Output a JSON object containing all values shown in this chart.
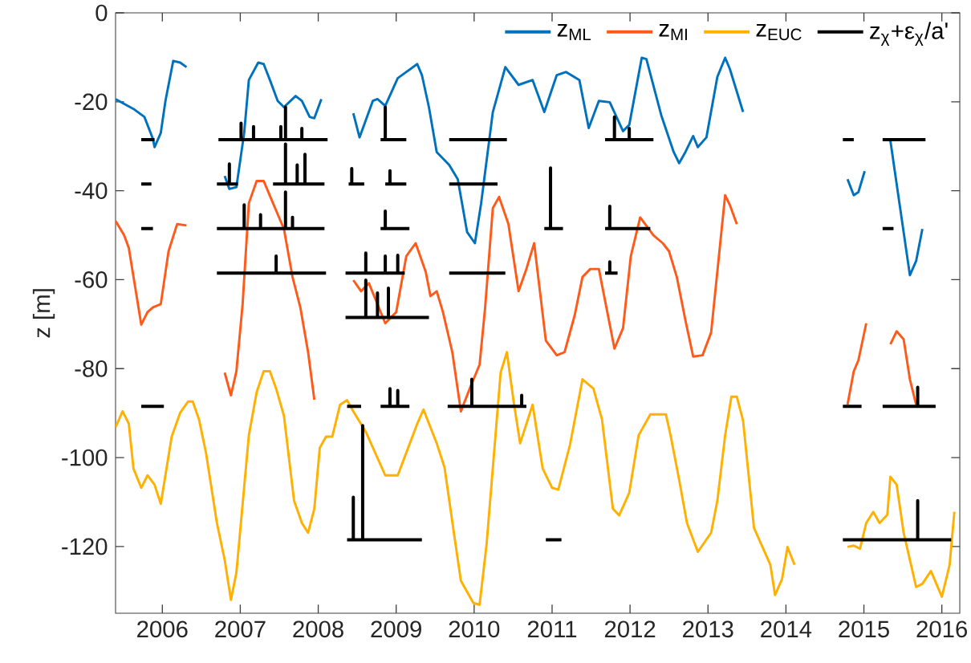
{
  "chart_data": {
    "type": "line",
    "ylabel": "z [m]",
    "xlim": [
      2005.4,
      2016.23
    ],
    "xticks": [
      2006,
      2007,
      2008,
      2009,
      2010,
      2011,
      2012,
      2013,
      2014,
      2015,
      2016
    ],
    "ylim": [
      -135,
      0
    ],
    "yticks": [
      -120,
      -100,
      -80,
      -60,
      -40,
      -20,
      0
    ],
    "legend": "top right",
    "series": [
      {
        "name": "z$_{ML}$",
        "color": "#0072bd",
        "x": [
          2005.4,
          2005.63,
          2005.77,
          2005.88,
          2005.9,
          2005.98,
          2006.04,
          2006.14,
          2006.23,
          2006.31,
          null,
          2006.8,
          2006.86,
          2006.95,
          2007.05,
          2007.11,
          2007.23,
          2007.3,
          2007.38,
          2007.48,
          2007.56,
          2007.71,
          2007.79,
          2007.89,
          2007.95,
          2008.04,
          null,
          2008.45,
          2008.53,
          2008.7,
          2008.76,
          2008.86,
          2009.02,
          2009.13,
          2009.27,
          2009.33,
          2009.42,
          2009.52,
          2009.68,
          2009.79,
          2009.91,
          2010.01,
          2010.09,
          2010.24,
          2010.4,
          2010.57,
          2010.75,
          2010.9,
          2011.06,
          2011.18,
          2011.35,
          2011.47,
          2011.6,
          2011.74,
          2011.91,
          2011.99,
          2012.15,
          2012.21,
          2012.4,
          2012.56,
          2012.63,
          2012.71,
          2012.81,
          2012.87,
          2012.98,
          2013.12,
          2013.22,
          2013.28,
          2013.45,
          null,
          2014.79,
          2014.87,
          2014.93,
          2015.01,
          null,
          2015.34,
          2015.59,
          2015.67,
          2015.75
        ],
        "values": [
          -19.4,
          -21.6,
          -23.4,
          -28.4,
          -30.2,
          -27,
          -19.8,
          -10.8,
          -11.2,
          -12.2,
          null,
          -36.7,
          -39.6,
          -39.2,
          -27,
          -15.1,
          -11.2,
          -11.5,
          -15.1,
          -19.8,
          -21.2,
          -18.7,
          -19.8,
          -23.4,
          -23.7,
          -19.4,
          null,
          -22.6,
          -28,
          -19.8,
          -19.4,
          -20.9,
          -14.7,
          -13.3,
          -11.5,
          -14,
          -21.2,
          -31.3,
          -34.2,
          -37.4,
          -49.3,
          -51.8,
          -42.8,
          -22.3,
          -12.2,
          -16.2,
          -15.1,
          -22.3,
          -14,
          -13.3,
          -15.1,
          -25.9,
          -19.8,
          -20.1,
          -26.6,
          -25.2,
          -10.1,
          -10.4,
          -23,
          -31.3,
          -33.8,
          -31.3,
          -27.7,
          -30.2,
          -28,
          -14.4,
          -10.1,
          -12.6,
          -22.3,
          null,
          -37.4,
          -41,
          -40.3,
          -35.6,
          null,
          -28.8,
          -59,
          -55.8,
          -48.6
        ]
      },
      {
        "name": "z$_{MI}$",
        "color": "#ff5a1a",
        "x": [
          2005.4,
          2005.51,
          2005.57,
          2005.73,
          2005.81,
          2005.88,
          2005.98,
          2006.08,
          2006.19,
          2006.31,
          null,
          2006.8,
          2006.88,
          2006.95,
          2007.03,
          2007.11,
          2007.21,
          2007.3,
          2007.42,
          2007.56,
          2007.67,
          2007.77,
          2007.87,
          2007.95,
          null,
          2008.45,
          2008.55,
          2008.65,
          2008.86,
          2009.0,
          2009.13,
          2009.25,
          2009.38,
          2009.44,
          2009.52,
          2009.6,
          2009.72,
          2009.83,
          2009.95,
          2010.07,
          2010.14,
          2010.24,
          2010.32,
          2010.44,
          2010.57,
          2010.67,
          2010.77,
          2010.92,
          2011.06,
          2011.16,
          2011.29,
          2011.39,
          2011.49,
          2011.6,
          2011.8,
          2011.91,
          2012.01,
          2012.13,
          2012.3,
          2012.42,
          2012.5,
          2012.6,
          2012.71,
          2012.81,
          2012.93,
          2013.04,
          2013.22,
          2013.28,
          2013.37,
          null,
          2014.79,
          2014.87,
          2014.93,
          2015.03,
          null,
          2015.34,
          2015.42,
          2015.51,
          2015.59,
          2015.67
        ],
        "values": [
          -46.8,
          -50,
          -52.9,
          -70.1,
          -67.3,
          -66.2,
          -65.5,
          -53.6,
          -47.5,
          -47.8,
          null,
          -80.9,
          -86,
          -80.6,
          -65.5,
          -42.8,
          -37.8,
          -37.8,
          -42.8,
          -48.6,
          -59.4,
          -66.2,
          -76.3,
          -87,
          null,
          -60.1,
          -62.6,
          -60.8,
          -69.8,
          -67.3,
          -54.7,
          -51.8,
          -58.3,
          -63.7,
          -62.6,
          -67.3,
          -76.3,
          -89.6,
          -84.2,
          -79.1,
          -66.5,
          -43.9,
          -41.4,
          -47.5,
          -62.6,
          -57.6,
          -51.8,
          -73.7,
          -77,
          -76.3,
          -68,
          -59.4,
          -57.6,
          -57.6,
          -75.5,
          -70.9,
          -54.7,
          -46,
          -50,
          -51.8,
          -53.6,
          -59.4,
          -69.1,
          -77.3,
          -77,
          -71.9,
          -41,
          -43.2,
          -47.5,
          null,
          -88.1,
          -80.6,
          -78.1,
          -69.8,
          null,
          -74.5,
          -71.6,
          -73.4,
          -82.4,
          -88.1
        ]
      },
      {
        "name": "z$_{EUC}$",
        "color": "#ffb000",
        "x": [
          2005.4,
          2005.49,
          2005.57,
          2005.63,
          2005.73,
          2005.81,
          2005.9,
          2005.98,
          2006.12,
          2006.23,
          2006.33,
          2006.39,
          2006.47,
          2006.56,
          2006.7,
          2006.8,
          2006.88,
          2006.95,
          2007.11,
          2007.21,
          2007.3,
          2007.38,
          2007.46,
          2007.56,
          2007.69,
          2007.79,
          2007.87,
          2007.95,
          2008.02,
          2008.1,
          2008.18,
          2008.28,
          2008.37,
          2008.45,
          2008.61,
          2008.86,
          2009.02,
          2009.27,
          2009.35,
          2009.52,
          2009.62,
          2009.74,
          2009.83,
          2009.99,
          2010.07,
          2010.16,
          2010.34,
          2010.42,
          2010.51,
          2010.59,
          2010.75,
          2010.88,
          2011.0,
          2011.08,
          2011.23,
          2011.39,
          2011.53,
          2011.64,
          2011.78,
          2011.86,
          2011.99,
          2012.11,
          2012.26,
          2012.46,
          2012.52,
          2012.63,
          2012.73,
          2012.87,
          2013.04,
          2013.12,
          2013.22,
          2013.3,
          2013.37,
          2013.45,
          2013.59,
          2013.8,
          2013.86,
          2013.95,
          2014.02,
          2014.11,
          null,
          2014.79,
          2014.87,
          2014.95,
          2015.03,
          2015.12,
          2015.2,
          2015.3,
          2015.34,
          2015.42,
          2015.51,
          2015.67,
          2015.75,
          2015.86,
          2016.0,
          2016.1,
          2016.16
        ],
        "values": [
          -93.2,
          -89.6,
          -92.4,
          -102.5,
          -106.8,
          -104,
          -106.1,
          -110.4,
          -95.3,
          -89.9,
          -87.4,
          -87.4,
          -91.4,
          -98.9,
          -114.7,
          -123,
          -132,
          -125.9,
          -95,
          -85.3,
          -80.6,
          -80.6,
          -84.5,
          -90.6,
          -109.7,
          -114.7,
          -116.9,
          -111.5,
          -97.8,
          -95.3,
          -95.3,
          -88.1,
          -87.1,
          -89.6,
          -94.2,
          -104,
          -104,
          -92.4,
          -89.2,
          -96.8,
          -102.2,
          -116.9,
          -127.7,
          -132.7,
          -133.1,
          -119.4,
          -80.9,
          -76.3,
          -87.8,
          -96.8,
          -88.1,
          -102.5,
          -106.8,
          -107.2,
          -97.1,
          -82.4,
          -84.5,
          -91.4,
          -111.5,
          -113,
          -107.9,
          -95,
          -90.3,
          -90.3,
          -95,
          -105,
          -114.7,
          -121.2,
          -116.9,
          -109.7,
          -95,
          -86.3,
          -86.3,
          -91.7,
          -115.8,
          -124.1,
          -130.9,
          -127.3,
          -120.1,
          -124.1,
          null,
          -120.1,
          -119.8,
          -120.5,
          -114.7,
          -112.2,
          -114.7,
          -112.9,
          -104.3,
          -106.1,
          -116.9,
          -129.1,
          -128.4,
          -125.5,
          -131.3,
          -124.1,
          -112.2
        ]
      },
      {
        "name": "z$_{χ}$+ε$_{χ}$/a'",
        "color": "#000000",
        "x": [
          2005.73,
          2005.9,
          null,
          2006.72,
          2007.01,
          2007.01,
          2007.01,
          2007.17,
          2007.17,
          2007.17,
          2007.52,
          2007.52,
          2007.52,
          2007.58,
          2007.58,
          2007.58,
          2007.79,
          2007.79,
          2007.79,
          2008.12,
          null,
          2008.8,
          2008.86,
          2008.86,
          2008.86,
          2009.13,
          null,
          2009.68,
          2010.42,
          null,
          2011.68,
          2011.8,
          2011.8,
          2011.8,
          2011.99,
          2011.99,
          2011.99,
          2012.3,
          null,
          2014.73,
          2014.87,
          null,
          2015.24,
          2015.79,
          null,
          2005.73,
          2005.86,
          null,
          2006.7,
          2006.86,
          2006.86,
          2006.86,
          2006.97,
          null,
          2007.42,
          2007.58,
          2007.58,
          2007.58,
          2007.73,
          2007.73,
          2007.73,
          2007.83,
          2007.83,
          2007.83,
          2008.08,
          null,
          2008.39,
          2008.43,
          2008.43,
          2008.43,
          2008.59,
          null,
          2008.86,
          2008.92,
          2008.92,
          2008.92,
          2009.13,
          null,
          2009.68,
          2010.3,
          null,
          2005.73,
          2005.88,
          null,
          2006.7,
          2007.05,
          2007.05,
          2007.05,
          2007.26,
          2007.26,
          2007.26,
          2007.58,
          2007.58,
          2007.58,
          2007.67,
          2007.67,
          2007.67,
          2008.08,
          null,
          2008.8,
          2008.86,
          2008.86,
          2008.86,
          2009.17,
          null,
          2010.9,
          2010.98,
          2010.98,
          2010.98,
          2011.14,
          null,
          2011.68,
          2011.74,
          2011.74,
          2011.74,
          2012.26,
          null,
          2015.24,
          2015.38,
          null,
          2006.7,
          2007.46,
          2007.46,
          2007.46,
          2008.1,
          null,
          2008.35,
          2008.61,
          2008.61,
          2008.61,
          2008.86,
          2008.86,
          2008.86,
          2009.02,
          2009.02,
          2009.02,
          2009.11,
          null,
          2009.68,
          2010.4,
          null,
          2011.68,
          2011.74,
          2011.74,
          2011.74,
          2011.84,
          null,
          2008.35,
          2008.61,
          2008.61,
          2008.61,
          2008.76,
          2008.76,
          2008.76,
          2008.9,
          2008.9,
          2008.9,
          2009.42,
          null,
          2005.73,
          2006.02,
          null,
          2008.37,
          2008.55,
          null,
          2008.8,
          2008.92,
          2008.92,
          2008.92,
          2009.02,
          2009.02,
          2009.02,
          2009.17,
          null,
          2009.66,
          2009.97,
          2009.97,
          2009.97,
          2010.61,
          2010.61,
          2010.61,
          2010.67,
          null,
          2014.73,
          2014.97,
          null,
          2015.24,
          2015.69,
          2015.69,
          2015.69,
          2015.92,
          null,
          2008.37,
          2008.45,
          2008.45,
          2008.45,
          2008.57,
          2008.57,
          2008.57,
          2009.33,
          null,
          2010.92,
          2011.12,
          null,
          2014.73,
          2015.69,
          2015.69,
          2015.69,
          2016.12
        ],
        "values": [
          -28.5,
          -28.5,
          null,
          -28.5,
          -28.5,
          -24.8,
          -28.5,
          -28.5,
          -25.6,
          -28.5,
          -28.5,
          -25.6,
          -28.5,
          -28.5,
          -21.2,
          -28.5,
          -28.5,
          -26,
          -28.5,
          -28.5,
          null,
          -28.5,
          -28.5,
          -21.2,
          -28.5,
          -28.5,
          null,
          -28.5,
          -28.5,
          null,
          -28.5,
          -28.5,
          -23.4,
          -28.5,
          -28.5,
          -26,
          -28.5,
          -28.5,
          null,
          -28.5,
          -28.5,
          null,
          -28.5,
          -28.5,
          null,
          -38.5,
          -38.5,
          null,
          -38.5,
          -38.5,
          -34,
          -38.5,
          -38.5,
          null,
          -38.5,
          -38.5,
          -29.5,
          -38.5,
          -38.5,
          -34.2,
          -38.5,
          -38.5,
          -31.8,
          -38.5,
          -38.5,
          null,
          -38.5,
          -38.5,
          -35,
          -38.5,
          -38.5,
          null,
          -38.5,
          -38.5,
          -35.5,
          -38.5,
          -38.5,
          null,
          -38.5,
          -38.5,
          null,
          -48.5,
          -48.5,
          null,
          -48.5,
          -48.5,
          -43.2,
          -48.5,
          -48.5,
          -45.4,
          -48.5,
          -48.5,
          -40.3,
          -48.5,
          -48.5,
          -46,
          -48.5,
          -48.5,
          null,
          -48.5,
          -48.5,
          -44.6,
          -48.5,
          -48.5,
          null,
          -48.5,
          -48.5,
          -34.9,
          -48.5,
          -48.5,
          null,
          -48.5,
          -48.5,
          -43.5,
          -48.5,
          -48.5,
          null,
          -48.5,
          -48.5,
          null,
          -58.5,
          -58.5,
          -54.7,
          -58.5,
          -58.5,
          null,
          -58.5,
          -58.5,
          -54,
          -58.5,
          -58.5,
          -54.7,
          -58.5,
          -58.5,
          -54.5,
          -58.5,
          -58.5,
          null,
          -58.5,
          -58.5,
          null,
          -58.5,
          -58.5,
          -56,
          -58.5,
          -58.5,
          null,
          -68.5,
          -68.5,
          -60.1,
          -68.5,
          -68.5,
          -63,
          -68.5,
          -68.5,
          -61.9,
          -68.5,
          -68.5,
          null,
          -88.5,
          -88.5,
          null,
          -88.5,
          -88.5,
          null,
          -88.5,
          -88.5,
          -84.5,
          -88.5,
          -88.5,
          -84.9,
          -88.5,
          -88.5,
          null,
          -88.5,
          -88.5,
          -82.4,
          -88.5,
          -88.5,
          -86,
          -88.5,
          -88.5,
          null,
          -88.5,
          -88.5,
          null,
          -88.5,
          -88.5,
          -84.2,
          -88.5,
          -88.5,
          null,
          -118.5,
          -118.5,
          -108.9,
          -118.5,
          -118.5,
          -92.8,
          -118.5,
          -118.5,
          null,
          -118.5,
          -118.5,
          null,
          -118.5,
          -118.5,
          -109.7,
          -118.5,
          -118.5
        ]
      }
    ]
  }
}
